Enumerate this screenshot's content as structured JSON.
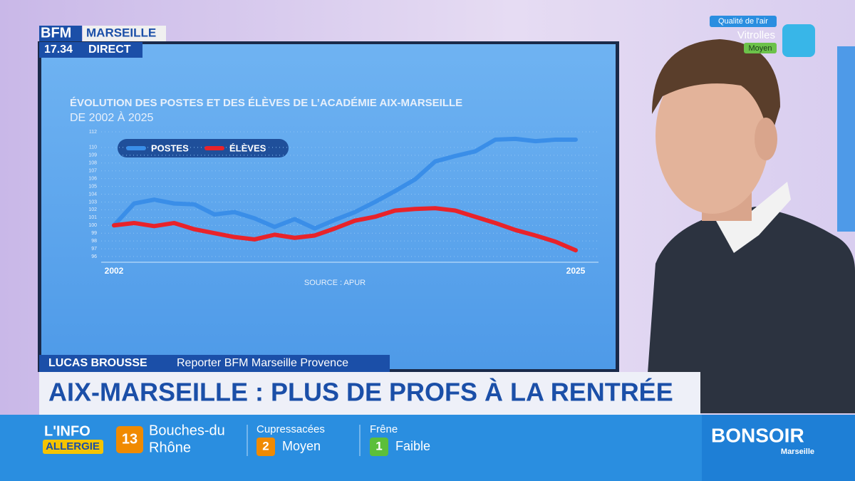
{
  "header": {
    "brand": "BFM",
    "city": "MARSEILLE",
    "time": "17.34",
    "live": "DIRECT"
  },
  "air_quality": {
    "label": "Qualité de l'air",
    "place": "Vitrolles",
    "level": "Moyen"
  },
  "chart_data": {
    "type": "line",
    "title": "ÉVOLUTION DES POSTES ET DES ÉLÈVES DE L’ACADÉMIE AIX-MARSEILLE",
    "subtitle": "DE 2002 À 2025",
    "source": "SOURCE : APUR",
    "categories": [
      "2002",
      null,
      null,
      null,
      null,
      null,
      null,
      null,
      null,
      null,
      null,
      null,
      null,
      null,
      null,
      null,
      null,
      null,
      null,
      null,
      null,
      null,
      null,
      "2025"
    ],
    "series": [
      {
        "name": "POSTES",
        "color": "#3a8ee8",
        "values": [
          100,
          102.8,
          103.3,
          102.8,
          102.7,
          101.4,
          101.7,
          100.9,
          99.8,
          100.8,
          99.6,
          100.7,
          101.7,
          103,
          104.4,
          105.9,
          108.2,
          108.9,
          109.5,
          111,
          111.1,
          110.8,
          111,
          111
        ]
      },
      {
        "name": "ÉLÈVES",
        "color": "#e8232a",
        "values": [
          100,
          100.3,
          99.9,
          100.3,
          99.5,
          99,
          98.5,
          98.2,
          98.8,
          98.4,
          98.7,
          99.6,
          100.6,
          101.1,
          101.9,
          102.1,
          102.2,
          101.9,
          101.1,
          100.3,
          99.4,
          98.7,
          97.9,
          96.8
        ]
      }
    ],
    "ylim": [
      96,
      112
    ],
    "yticks": [
      96,
      97,
      98,
      99,
      100,
      101,
      102,
      103,
      104,
      105,
      106,
      107,
      108,
      109,
      110,
      112
    ],
    "legend": "top-left"
  },
  "lower_third": {
    "name": "LUCAS BROUSSE",
    "role": "Reporter BFM Marseille Provence",
    "headline": "AIX-MARSEILLE : PLUS DE PROFS À LA RENTRÉE"
  },
  "ticker": {
    "title": "L'INFO",
    "subtitle": "ALLERGIE",
    "department": {
      "number": 13,
      "lines": [
        "Bouches-du",
        "Rhône"
      ]
    },
    "pollens": [
      {
        "name": "Cupressacées",
        "level": 2,
        "label": "Moyen"
      },
      {
        "name": "Frêne",
        "level": 1,
        "label": "Faible"
      }
    ],
    "show": {
      "name": "BONSOIR",
      "city": "Marseille"
    }
  }
}
